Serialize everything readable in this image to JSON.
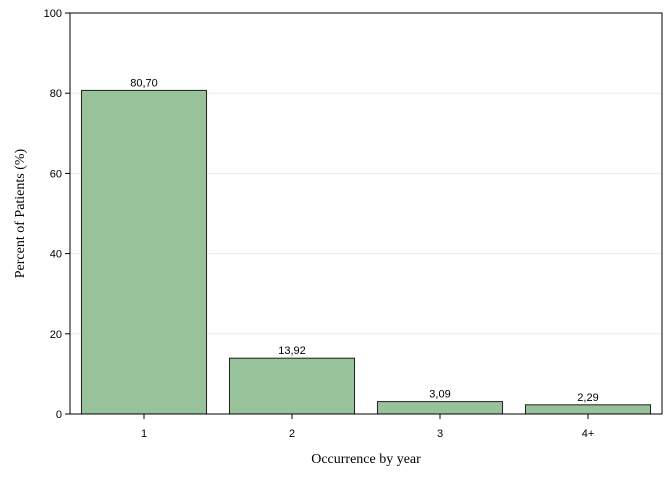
{
  "chart_data": {
    "type": "bar",
    "title": "",
    "xlabel": "Occurrence by year",
    "ylabel": "Percent of Patients (%)",
    "categories": [
      "1",
      "2",
      "3",
      "4+"
    ],
    "values": [
      80.7,
      13.92,
      3.09,
      2.29
    ],
    "data_labels": [
      "80,70",
      "13,92",
      "3,09",
      "2,29"
    ],
    "ylim": [
      0,
      100
    ],
    "yticks": [
      0,
      20,
      40,
      60,
      80,
      100
    ],
    "ytick_labels": [
      "0",
      "20",
      "40",
      "60",
      "80",
      "100"
    ],
    "grid": true,
    "legend": "none",
    "colors": {
      "bar_fill": "#98c299",
      "bar_stroke": "#1e1e1e",
      "grid": "#ebebeb",
      "axis": "#000000"
    }
  }
}
